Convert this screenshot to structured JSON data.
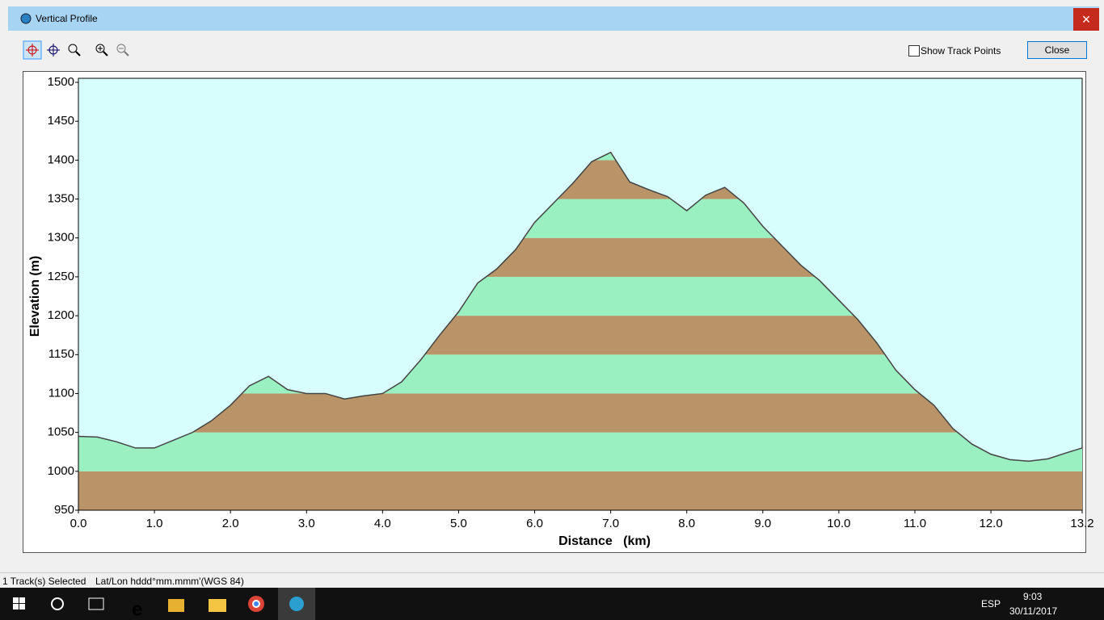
{
  "window": {
    "title": "Vertical Profile",
    "show_track_points": "Show Track Points",
    "close": "Close",
    "close_x": "×"
  },
  "status": {
    "tracks": "1 Track(s) Selected",
    "coords": "Lat/Lon hddd°mm.mmm'(WGS 84)"
  },
  "taskbar": {
    "lang": "ESP",
    "time": "9:03",
    "date": "30/11/2017"
  },
  "chart_data": {
    "type": "area",
    "x_label": "Distance   (km)",
    "y_label": "Elevation (m)",
    "x": [
      0,
      0.25,
      0.5,
      0.75,
      1,
      1.25,
      1.5,
      1.75,
      2,
      2.25,
      2.5,
      2.75,
      3,
      3.25,
      3.5,
      3.75,
      4,
      4.25,
      4.5,
      4.75,
      5,
      5.25,
      5.5,
      5.75,
      6,
      6.25,
      6.5,
      6.75,
      7,
      7.25,
      7.5,
      7.75,
      8,
      8.25,
      8.5,
      8.75,
      9,
      9.25,
      9.5,
      9.75,
      10,
      10.25,
      10.5,
      10.75,
      11,
      11.25,
      11.5,
      11.75,
      12,
      12.25,
      12.5,
      12.75,
      13,
      13.2
    ],
    "values": [
      1045,
      1044,
      1038,
      1030,
      1030,
      1040,
      1050,
      1065,
      1085,
      1110,
      1122,
      1105,
      1100,
      1100,
      1093,
      1097,
      1100,
      1115,
      1143,
      1175,
      1205,
      1242,
      1260,
      1285,
      1320,
      1345,
      1370,
      1398,
      1410,
      1372,
      1362,
      1353,
      1335,
      1355,
      1365,
      1345,
      1315,
      1290,
      1265,
      1245,
      1220,
      1195,
      1165,
      1130,
      1105,
      1085,
      1055,
      1035,
      1022,
      1015,
      1013,
      1016,
      1024,
      1030
    ],
    "color": "#444444",
    "band_colors": [
      "#b89468",
      "#9af0c0"
    ],
    "background": "#d8fdfd",
    "xlim": [
      0,
      13.2
    ],
    "ylim": [
      950,
      1500
    ],
    "xticks": [
      {
        "value": 0,
        "label": "0.0"
      },
      {
        "value": 1,
        "label": "1.0"
      },
      {
        "value": 2,
        "label": "2.0"
      },
      {
        "value": 3,
        "label": "3.0"
      },
      {
        "value": 4,
        "label": "4.0"
      },
      {
        "value": 5,
        "label": "5.0"
      },
      {
        "value": 6,
        "label": "6.0"
      },
      {
        "value": 7,
        "label": "7.0"
      },
      {
        "value": 8,
        "label": "8.0"
      },
      {
        "value": 9,
        "label": "9.0"
      },
      {
        "value": 10,
        "label": "10.0"
      },
      {
        "value": 11,
        "label": "11.0"
      },
      {
        "value": 12,
        "label": "12.0"
      },
      {
        "value": 13.2,
        "label": "13.2"
      }
    ],
    "yticks": [
      950,
      1000,
      1050,
      1100,
      1150,
      1200,
      1250,
      1300,
      1350,
      1400,
      1450,
      1500
    ]
  }
}
